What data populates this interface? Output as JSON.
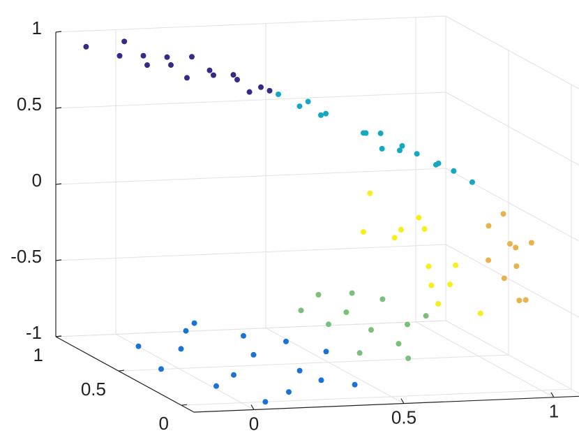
{
  "chart_data": {
    "type": "scatter3d",
    "xlim": [
      -0.2,
      1.1
    ],
    "ylim": [
      -0.1,
      1
    ],
    "zlim": [
      -1,
      1
    ],
    "xticks": [
      0,
      0.5,
      1
    ],
    "yticks": [
      0,
      0.5,
      1
    ],
    "zticks": [
      -1,
      -0.5,
      0,
      0.5,
      1
    ],
    "grid": true,
    "series": [
      {
        "color": "#352a87",
        "x": [
          -0.12,
          -0.05,
          0.0,
          0.05,
          0.1,
          0.15,
          0.2,
          0.25,
          0.3,
          0.35,
          0.4,
          0.45,
          0.02,
          0.12,
          0.22,
          0.32
        ],
        "y": [
          0.95,
          0.85,
          0.75,
          0.9,
          0.8,
          0.95,
          0.7,
          0.85,
          0.75,
          0.9,
          0.8,
          0.85,
          0.98,
          0.72,
          0.92,
          0.7
        ],
        "z": [
          0.92,
          0.9,
          0.88,
          0.87,
          0.85,
          0.83,
          0.82,
          0.78,
          0.76,
          0.72,
          0.68,
          0.63,
          0.93,
          0.8,
          0.84,
          0.7
        ]
      },
      {
        "color": "#13a9c0",
        "x": [
          0.5,
          0.55,
          0.6,
          0.65,
          0.7,
          0.75,
          0.8,
          0.85,
          0.9,
          0.95,
          1.0,
          0.62,
          0.72,
          0.82,
          0.92,
          0.98
        ],
        "y": [
          0.9,
          0.85,
          0.8,
          0.88,
          0.7,
          0.8,
          0.65,
          0.75,
          0.6,
          0.7,
          0.55,
          0.95,
          0.6,
          0.85,
          0.8,
          0.65
        ],
        "z": [
          0.58,
          0.52,
          0.48,
          0.45,
          0.4,
          0.35,
          0.3,
          0.28,
          0.22,
          0.18,
          0.12,
          0.5,
          0.34,
          0.32,
          0.2,
          0.15
        ]
      },
      {
        "color": "#f5f01a",
        "x": [
          0.68,
          0.7,
          0.72,
          0.75,
          0.78,
          0.8,
          0.82,
          0.7,
          0.74,
          0.78,
          0.84,
          0.86
        ],
        "y": [
          0.6,
          0.4,
          0.5,
          0.3,
          0.45,
          0.25,
          0.5,
          0.7,
          0.2,
          0.35,
          0.3,
          0.15
        ],
        "z": [
          0.05,
          -0.1,
          -0.2,
          -0.3,
          -0.05,
          -0.4,
          -0.15,
          -0.25,
          -0.5,
          -0.45,
          -0.3,
          -0.55
        ]
      },
      {
        "color": "#e9b24a",
        "x": [
          0.95,
          1.0,
          1.02,
          0.98,
          0.96,
          1.04,
          0.99,
          1.01,
          0.97,
          1.03
        ],
        "y": [
          0.3,
          0.25,
          0.35,
          0.15,
          0.2,
          0.3,
          0.1,
          0.2,
          0.35,
          0.15
        ],
        "z": [
          -0.05,
          -0.15,
          0.0,
          -0.25,
          -0.35,
          -0.2,
          -0.45,
          -0.5,
          -0.3,
          -0.1
        ]
      },
      {
        "color": "#7cbf7b",
        "x": [
          0.45,
          0.5,
          0.55,
          0.6,
          0.62,
          0.65,
          0.68,
          0.7,
          0.52,
          0.58,
          0.64,
          0.72
        ],
        "y": [
          0.6,
          0.5,
          0.7,
          0.4,
          0.6,
          0.3,
          0.5,
          0.35,
          0.3,
          0.55,
          0.2,
          0.25
        ],
        "z": [
          -0.7,
          -0.75,
          -0.65,
          -0.75,
          -0.6,
          -0.8,
          -0.6,
          -0.7,
          -0.85,
          -0.7,
          -0.85,
          -0.6
        ]
      },
      {
        "color": "#1a72d8",
        "x": [
          -0.1,
          0.0,
          0.05,
          0.1,
          0.15,
          0.2,
          0.25,
          0.3,
          0.35,
          0.4,
          0.45,
          -0.05,
          0.08,
          0.22,
          0.32,
          0.42
        ],
        "y": [
          0.4,
          0.2,
          0.6,
          0.3,
          0.8,
          0.1,
          0.5,
          0.7,
          0.2,
          0.6,
          0.4,
          0.7,
          0.0,
          0.9,
          0.3,
          0.1
        ],
        "z": [
          -0.95,
          -0.98,
          -0.92,
          -0.96,
          -0.9,
          -0.99,
          -0.93,
          -0.9,
          -0.97,
          -0.9,
          -0.88,
          -0.94,
          -1.0,
          -0.9,
          -0.95,
          -0.96
        ]
      }
    ]
  }
}
